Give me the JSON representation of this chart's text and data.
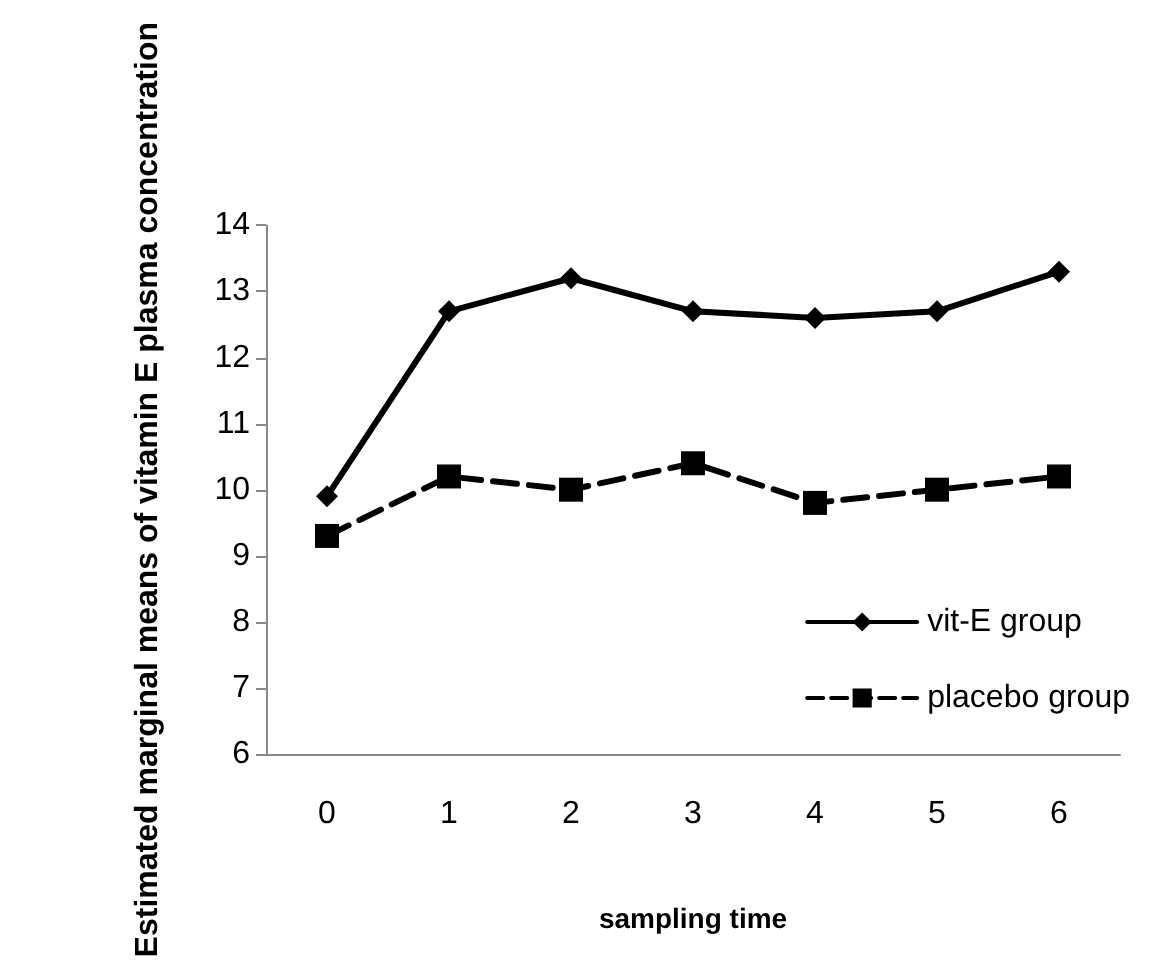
{
  "chart_data": {
    "type": "line",
    "xlabel": "sampling time",
    "ylabel": "Estimated marginal means of vitamin E plasma concentration",
    "categories": [
      "0",
      "1",
      "2",
      "3",
      "4",
      "5",
      "6"
    ],
    "series": [
      {
        "name": "vit-E group",
        "color": "#000000",
        "marker": "diamond",
        "line_style": "solid",
        "values": [
          9.9,
          12.7,
          13.2,
          12.7,
          12.6,
          12.7,
          13.3
        ]
      },
      {
        "name": "placebo group",
        "color": "#000000",
        "marker": "square",
        "line_style": "dashed",
        "values": [
          9.3,
          10.2,
          10.0,
          10.4,
          9.8,
          10.0,
          10.2
        ]
      }
    ],
    "ylim": [
      6,
      14
    ],
    "yticks": [
      6,
      7,
      8,
      9,
      10,
      11,
      12,
      13,
      14
    ],
    "grid": false,
    "legend": "bottom right"
  }
}
